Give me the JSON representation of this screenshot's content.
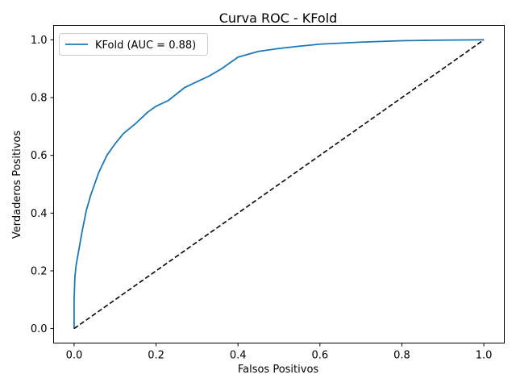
{
  "chart_data": {
    "type": "line",
    "title": "Curva ROC - KFold",
    "xlabel": "Falsos Positivos",
    "ylabel": "Verdaderos Positivos",
    "xlim": [
      -0.05,
      1.05
    ],
    "ylim": [
      -0.05,
      1.05
    ],
    "xticks": [
      "0.0",
      "0.2",
      "0.4",
      "0.6",
      "0.8",
      "1.0"
    ],
    "yticks": [
      "0.0",
      "0.2",
      "0.4",
      "0.6",
      "0.8",
      "1.0"
    ],
    "grid": false,
    "legend_position": "upper-left",
    "series": [
      {
        "name": "KFold (AUC = 0.88)",
        "color": "#1f77b4",
        "style": "solid",
        "x": [
          0.0,
          0.0,
          0.002,
          0.005,
          0.01,
          0.015,
          0.02,
          0.03,
          0.04,
          0.05,
          0.06,
          0.07,
          0.08,
          0.1,
          0.12,
          0.15,
          0.18,
          0.2,
          0.23,
          0.27,
          0.3,
          0.33,
          0.36,
          0.4,
          0.45,
          0.5,
          0.55,
          0.6,
          0.7,
          0.8,
          0.9,
          1.0
        ],
        "y": [
          0.0,
          0.1,
          0.18,
          0.22,
          0.26,
          0.3,
          0.34,
          0.41,
          0.46,
          0.5,
          0.54,
          0.57,
          0.6,
          0.64,
          0.675,
          0.71,
          0.75,
          0.77,
          0.79,
          0.835,
          0.855,
          0.875,
          0.9,
          0.94,
          0.96,
          0.97,
          0.978,
          0.985,
          0.992,
          0.997,
          0.999,
          1.0
        ]
      },
      {
        "name": "",
        "color": "#000000",
        "style": "dashed",
        "x": [
          0.0,
          1.0
        ],
        "y": [
          0.0,
          1.0
        ]
      }
    ]
  }
}
